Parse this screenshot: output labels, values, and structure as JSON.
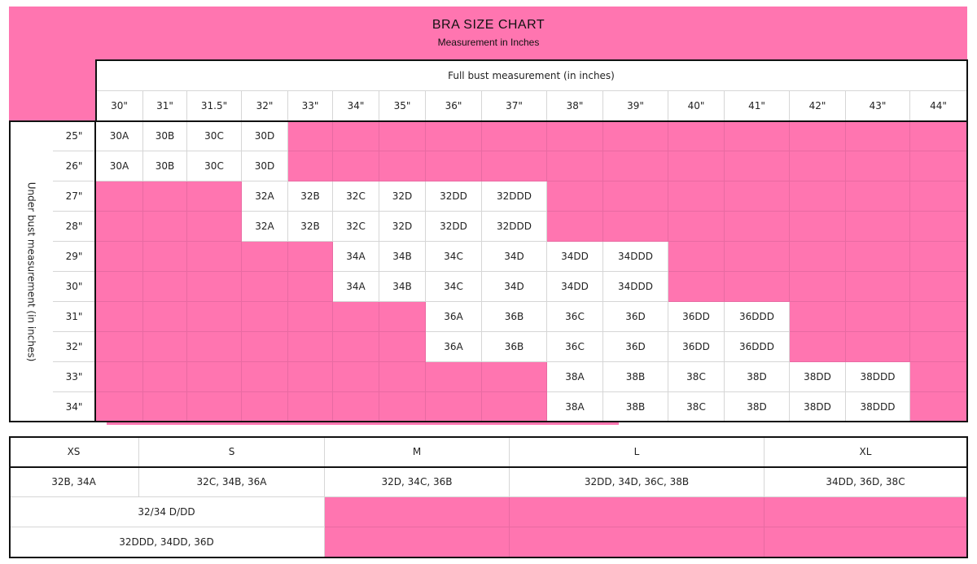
{
  "title": "BRA SIZE CHART",
  "subtitle": "Measurement in Inches",
  "colors": {
    "accent": "#ff75b0",
    "border": "#111111",
    "grid": "#d6d6d6"
  },
  "full_bust_label": "Full bust measurement (in inches)",
  "under_bust_label": "Under bust measurement (in inches)",
  "bust_columns": [
    "30\"",
    "31\"",
    "31.5\"",
    "32\"",
    "33\"",
    "34\"",
    "35\"",
    "36\"",
    "37\"",
    "38\"",
    "39\"",
    "40\"",
    "41\"",
    "42\"",
    "43\"",
    "44\""
  ],
  "rows": [
    {
      "under": "25\"",
      "cells": [
        "30A",
        "30B",
        "30C",
        "30D",
        "",
        "",
        "",
        "",
        "",
        "",
        "",
        "",
        "",
        "",
        "",
        ""
      ]
    },
    {
      "under": "26\"",
      "cells": [
        "30A",
        "30B",
        "30C",
        "30D",
        "",
        "",
        "",
        "",
        "",
        "",
        "",
        "",
        "",
        "",
        "",
        ""
      ]
    },
    {
      "under": "27\"",
      "cells": [
        "",
        "",
        "",
        "32A",
        "32B",
        "32C",
        "32D",
        "32DD",
        "32DDD",
        "",
        "",
        "",
        "",
        "",
        "",
        ""
      ]
    },
    {
      "under": "28\"",
      "cells": [
        "",
        "",
        "",
        "32A",
        "32B",
        "32C",
        "32D",
        "32DD",
        "32DDD",
        "",
        "",
        "",
        "",
        "",
        "",
        ""
      ]
    },
    {
      "under": "29\"",
      "cells": [
        "",
        "",
        "",
        "",
        "",
        "34A",
        "34B",
        "34C",
        "34D",
        "34DD",
        "34DDD",
        "",
        "",
        "",
        "",
        ""
      ]
    },
    {
      "under": "30\"",
      "cells": [
        "",
        "",
        "",
        "",
        "",
        "34A",
        "34B",
        "34C",
        "34D",
        "34DD",
        "34DDD",
        "",
        "",
        "",
        "",
        ""
      ]
    },
    {
      "under": "31\"",
      "cells": [
        "",
        "",
        "",
        "",
        "",
        "",
        "",
        "36A",
        "36B",
        "36C",
        "36D",
        "36DD",
        "36DDD",
        "",
        "",
        ""
      ]
    },
    {
      "under": "32\"",
      "cells": [
        "",
        "",
        "",
        "",
        "",
        "",
        "",
        "36A",
        "36B",
        "36C",
        "36D",
        "36DD",
        "36DDD",
        "",
        "",
        ""
      ]
    },
    {
      "under": "33\"",
      "cells": [
        "",
        "",
        "",
        "",
        "",
        "",
        "",
        "",
        "",
        "38A",
        "38B",
        "38C",
        "38D",
        "38DD",
        "38DDD",
        ""
      ]
    },
    {
      "under": "34\"",
      "cells": [
        "",
        "",
        "",
        "",
        "",
        "",
        "",
        "",
        "",
        "38A",
        "38B",
        "38C",
        "38D",
        "38DD",
        "38DDD",
        ""
      ]
    }
  ],
  "size_table": {
    "headers": [
      "XS",
      "S",
      "M",
      "L",
      "XL"
    ],
    "row1": [
      "32B, 34A",
      "32C, 34B, 36A",
      "32D, 34C, 36B",
      "32DD, 34D, 36C, 38B",
      "34DD, 36D, 38C"
    ],
    "row2": "32/34 D/DD",
    "row3": "32DDD, 34DD, 36D"
  }
}
